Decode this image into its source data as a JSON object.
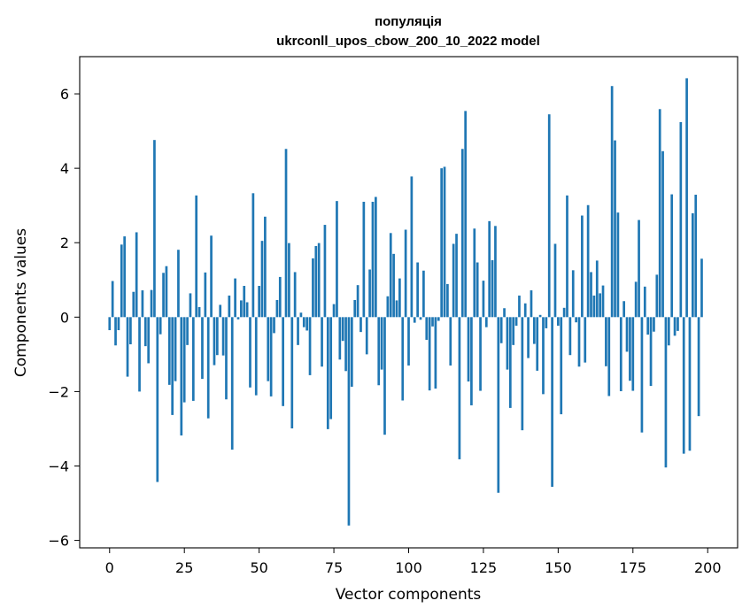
{
  "colors": {
    "bar": "#1f77b4",
    "axes": "#000000",
    "background": "#ffffff"
  },
  "chart_data": {
    "type": "bar",
    "title_line1": "популяція",
    "title_line2": "ukrconll_upos_cbow_200_10_2022 model",
    "xlabel": "Vector components",
    "ylabel": "Components values",
    "xlim": [
      -10,
      210
    ],
    "ylim": [
      -6.2,
      7.0
    ],
    "grid": false,
    "xticks": [
      0,
      25,
      50,
      75,
      100,
      125,
      150,
      175,
      200
    ],
    "xtick_labels": [
      "0",
      "25",
      "50",
      "75",
      "100",
      "125",
      "150",
      "175",
      "200"
    ],
    "yticks": [
      -6,
      -4,
      -2,
      0,
      2,
      4,
      6
    ],
    "ytick_labels": [
      "−6",
      "−4",
      "−2",
      "0",
      "2",
      "4",
      "6"
    ],
    "values": [
      -0.35,
      0.97,
      -0.76,
      -0.35,
      1.95,
      2.17,
      -1.6,
      -0.73,
      0.68,
      2.28,
      -2.0,
      0.72,
      -0.78,
      -1.24,
      0.73,
      4.76,
      -4.43,
      -0.46,
      1.19,
      1.37,
      -1.82,
      -2.63,
      -1.72,
      1.81,
      -3.18,
      -2.29,
      -0.75,
      0.64,
      -2.25,
      3.27,
      0.27,
      -1.66,
      1.2,
      -2.72,
      2.19,
      -1.29,
      -1.02,
      0.33,
      -1.03,
      -2.21,
      0.58,
      -3.56,
      1.04,
      -0.06,
      0.45,
      0.84,
      0.4,
      -1.89,
      3.33,
      -2.1,
      0.84,
      2.05,
      2.7,
      -1.72,
      -2.13,
      -0.43,
      0.46,
      1.08,
      -2.39,
      4.52,
      1.99,
      -2.99,
      1.21,
      -0.75,
      0.12,
      -0.27,
      -0.36,
      -1.56,
      1.58,
      1.91,
      1.99,
      -1.33,
      2.48,
      -3.01,
      -2.74,
      0.35,
      3.12,
      -1.14,
      -0.64,
      -1.45,
      -5.6,
      -1.87,
      0.46,
      0.86,
      -0.4,
      3.1,
      -1.0,
      1.28,
      3.1,
      3.23,
      -1.83,
      -1.41,
      -3.16,
      0.56,
      2.26,
      1.7,
      0.45,
      1.04,
      -2.24,
      2.35,
      -1.3,
      3.78,
      -0.15,
      1.47,
      -0.07,
      1.25,
      -0.61,
      -1.97,
      -0.25,
      -1.92,
      -0.1,
      4.0,
      4.04,
      0.89,
      -1.3,
      1.97,
      2.24,
      -3.82,
      4.52,
      5.54,
      -1.73,
      -2.37,
      2.38,
      1.47,
      -1.98,
      0.98,
      -0.27,
      2.58,
      1.53,
      2.45,
      -4.72,
      -0.7,
      0.24,
      -1.41,
      -2.44,
      -0.75,
      -0.23,
      0.58,
      -3.04,
      0.37,
      -1.1,
      0.72,
      -0.72,
      -1.44,
      0.06,
      -2.07,
      -0.3,
      5.45,
      -4.56,
      1.97,
      -0.23,
      -2.61,
      0.25,
      3.27,
      -1.02,
      1.26,
      -0.14,
      -1.33,
      2.73,
      -1.22,
      3.01,
      1.21,
      0.58,
      1.52,
      0.64,
      0.85,
      -1.32,
      -2.12,
      6.21,
      4.75,
      2.81,
      -1.99,
      0.43,
      -0.93,
      -1.71,
      -1.98,
      0.95,
      2.61,
      -3.1,
      0.82,
      -0.47,
      -1.85,
      -0.39,
      1.14,
      5.59,
      4.46,
      -4.04,
      -0.76,
      3.3,
      -0.5,
      -0.37,
      5.24,
      -3.67,
      6.42,
      -3.59,
      2.79,
      3.29,
      -2.66,
      1.57
    ]
  }
}
